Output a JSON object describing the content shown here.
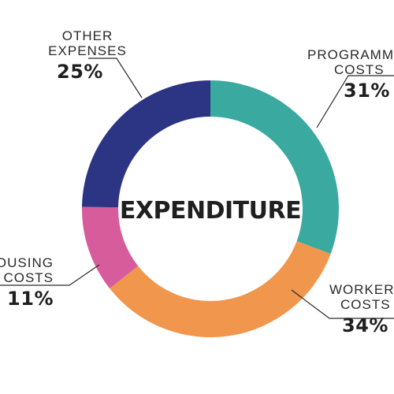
{
  "chart_data": {
    "type": "pie",
    "title": "EXPENDITURE",
    "slices": [
      {
        "label_lines": [
          "PROGRAMME",
          "COSTS"
        ],
        "value": 31,
        "value_label": "31%",
        "color": "#3aa99f"
      },
      {
        "label_lines": [
          "WORKER",
          "COSTS"
        ],
        "value": 34,
        "value_label": "34%",
        "color": "#f0964d"
      },
      {
        "label_lines": [
          "HOUSING",
          "COSTS"
        ],
        "value": 11,
        "value_label": "11%",
        "color": "#d65c9c"
      },
      {
        "label_lines": [
          "OTHER",
          "EXPENSES"
        ],
        "value": 25,
        "value_label": "25%",
        "color": "#2c3583"
      }
    ]
  }
}
